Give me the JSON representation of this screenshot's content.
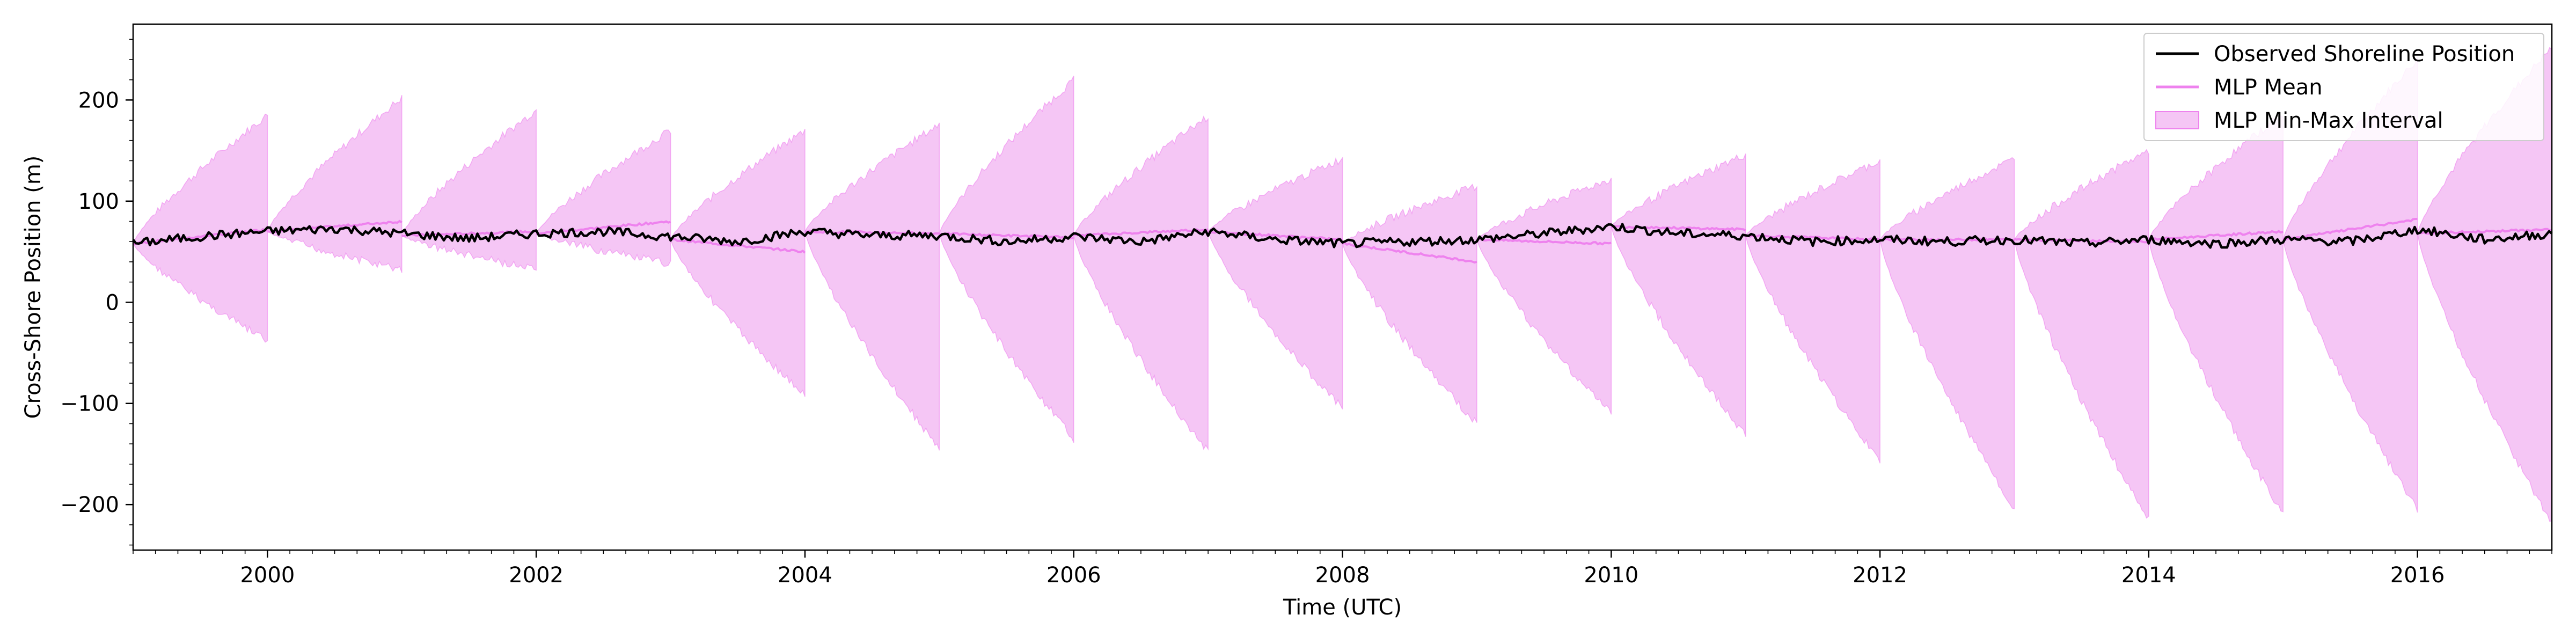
{
  "chart_data": {
    "type": "line",
    "title": "",
    "xlabel": "Time (UTC)",
    "ylabel": "Cross-Shore Position (m)",
    "xlim": [
      1999.0,
      2017.0
    ],
    "ylim": [
      -245,
      275
    ],
    "x_ticks": [
      2000,
      2002,
      2004,
      2006,
      2008,
      2010,
      2012,
      2014,
      2016
    ],
    "x_tick_labels": [
      "2000",
      "2002",
      "2004",
      "2006",
      "2008",
      "2010",
      "2012",
      "2014",
      "2016"
    ],
    "y_ticks": [
      -200,
      -100,
      0,
      100,
      200
    ],
    "y_tick_labels": [
      "−200",
      "−100",
      "0",
      "100",
      "200"
    ],
    "grid": false,
    "legend": {
      "position": "top-right",
      "entries": [
        "Observed Shoreline Position",
        "MLP Mean",
        "MLP Min-Max Interval"
      ]
    },
    "colors": {
      "observed": "#000000",
      "mean": "#ee82ee",
      "interval_fill": "#f5c6f5",
      "interval_edge": "#ee82ee"
    },
    "observed_shoreline": {
      "name": "Observed Shoreline Position",
      "x": [
        1999.0,
        1999.5,
        2000.0,
        2000.5,
        2001.0,
        2001.5,
        2002.0,
        2002.5,
        2003.0,
        2003.5,
        2004.0,
        2004.5,
        2005.0,
        2005.5,
        2006.0,
        2006.5,
        2007.0,
        2007.5,
        2008.0,
        2008.5,
        2009.0,
        2009.5,
        2010.0,
        2010.5,
        2011.0,
        2011.5,
        2012.0,
        2012.5,
        2013.0,
        2013.5,
        2014.0,
        2014.5,
        2015.0,
        2015.5,
        2016.0,
        2016.5,
        2017.0
      ],
      "y": [
        58,
        65,
        70,
        73,
        68,
        63,
        68,
        70,
        65,
        60,
        70,
        66,
        66,
        60,
        65,
        60,
        70,
        62,
        58,
        60,
        62,
        68,
        75,
        68,
        66,
        60,
        62,
        60,
        62,
        58,
        62,
        58,
        62,
        60,
        72,
        62,
        68
      ]
    },
    "mlp_periods": [
      {
        "start": 1999.0,
        "end": 2000.0,
        "start_value": 58,
        "mean_end": 72,
        "max_end": 185,
        "min_end": -38
      },
      {
        "start": 2000.0,
        "end": 2001.0,
        "start_value": 70,
        "mean_end": 80,
        "max_end": 202,
        "min_end": 32
      },
      {
        "start": 2001.0,
        "end": 2002.0,
        "start_value": 66,
        "mean_end": 70,
        "max_end": 190,
        "min_end": 32
      },
      {
        "start": 2002.0,
        "end": 2003.0,
        "start_value": 68,
        "mean_end": 80,
        "max_end": 170,
        "min_end": 38
      },
      {
        "start": 2003.0,
        "end": 2004.0,
        "start_value": 62,
        "mean_end": 50,
        "max_end": 170,
        "min_end": -92
      },
      {
        "start": 2004.0,
        "end": 2005.0,
        "start_value": 70,
        "mean_end": 68,
        "max_end": 176,
        "min_end": -145
      },
      {
        "start": 2005.0,
        "end": 2006.0,
        "start_value": 68,
        "mean_end": 64,
        "max_end": 220,
        "min_end": -135
      },
      {
        "start": 2006.0,
        "end": 2007.0,
        "start_value": 66,
        "mean_end": 72,
        "max_end": 184,
        "min_end": -148
      },
      {
        "start": 2007.0,
        "end": 2008.0,
        "start_value": 70,
        "mean_end": 62,
        "max_end": 142,
        "min_end": -105
      },
      {
        "start": 2008.0,
        "end": 2009.0,
        "start_value": 58,
        "mean_end": 40,
        "max_end": 115,
        "min_end": -120
      },
      {
        "start": 2009.0,
        "end": 2010.0,
        "start_value": 62,
        "mean_end": 58,
        "max_end": 122,
        "min_end": -110
      },
      {
        "start": 2010.0,
        "end": 2011.0,
        "start_value": 75,
        "mean_end": 72,
        "max_end": 146,
        "min_end": -132
      },
      {
        "start": 2011.0,
        "end": 2012.0,
        "start_value": 66,
        "mean_end": 62,
        "max_end": 140,
        "min_end": -158
      },
      {
        "start": 2012.0,
        "end": 2013.0,
        "start_value": 62,
        "mean_end": 62,
        "max_end": 142,
        "min_end": -205
      },
      {
        "start": 2013.0,
        "end": 2014.0,
        "start_value": 62,
        "mean_end": 60,
        "max_end": 150,
        "min_end": -215
      },
      {
        "start": 2014.0,
        "end": 2015.0,
        "start_value": 62,
        "mean_end": 70,
        "max_end": 186,
        "min_end": -210
      },
      {
        "start": 2015.0,
        "end": 2016.0,
        "start_value": 62,
        "mean_end": 82,
        "max_end": 240,
        "min_end": -205
      },
      {
        "start": 2016.0,
        "end": 2017.0,
        "start_value": 68,
        "mean_end": 72,
        "max_end": 252,
        "min_end": -218
      }
    ]
  }
}
